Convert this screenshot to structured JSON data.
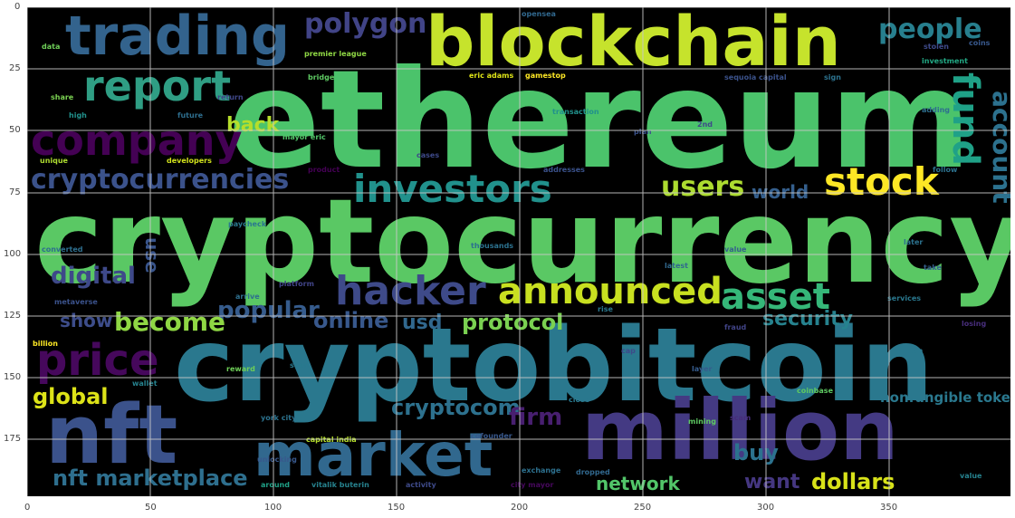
{
  "axes": {
    "x_ticks": [
      "0",
      "50",
      "100",
      "150",
      "200",
      "250",
      "300",
      "350"
    ],
    "y_ticks": [
      "0",
      "25",
      "50",
      "75",
      "100",
      "125",
      "150",
      "175"
    ]
  },
  "wordcloud": {
    "words": [
      {
        "text": "ethereum",
        "color": "#4bc36b"
      },
      {
        "text": "cryptocurrency",
        "color": "#5ac864"
      },
      {
        "text": "cryptobitcoin",
        "color": "#2a788e"
      },
      {
        "text": "blockchain",
        "color": "#c6e32c"
      },
      {
        "text": "trading",
        "color": "#33638d"
      },
      {
        "text": "million",
        "color": "#443a83"
      },
      {
        "text": "nft",
        "color": "#3b528b"
      },
      {
        "text": "market",
        "color": "#31688e"
      },
      {
        "text": "report",
        "color": "#2f9e84"
      },
      {
        "text": "company",
        "color": "#440154"
      },
      {
        "text": "price",
        "color": "#46085c"
      },
      {
        "text": "hacker",
        "color": "#3e4a89"
      },
      {
        "text": "announced",
        "color": "#c8e020"
      },
      {
        "text": "investors",
        "color": "#21918c"
      },
      {
        "text": "stock",
        "color": "#fde725"
      },
      {
        "text": "asset",
        "color": "#35b779"
      },
      {
        "text": "cryptocurrencies",
        "color": "#3b528b"
      },
      {
        "text": "polygon",
        "color": "#414487"
      },
      {
        "text": "people",
        "color": "#277f8e"
      },
      {
        "text": "fund",
        "color": "#1fa187"
      },
      {
        "text": "account",
        "color": "#2c718e"
      },
      {
        "text": "users",
        "color": "#addc30"
      },
      {
        "text": "popular",
        "color": "#365c8d"
      },
      {
        "text": "become",
        "color": "#8fd744"
      },
      {
        "text": "digital",
        "color": "#3e4989"
      },
      {
        "text": "online",
        "color": "#38588c"
      },
      {
        "text": "usd",
        "color": "#31688e"
      },
      {
        "text": "protocol",
        "color": "#7ad151"
      },
      {
        "text": "security",
        "color": "#26828e"
      },
      {
        "text": "show",
        "color": "#3d4d8a"
      },
      {
        "text": "global",
        "color": "#dde318"
      },
      {
        "text": "cryptocom",
        "color": "#2d718e"
      },
      {
        "text": "firm",
        "color": "#481f70"
      },
      {
        "text": "buy",
        "color": "#2c728e"
      },
      {
        "text": "want",
        "color": "#453781"
      },
      {
        "text": "dollars",
        "color": "#d8e219"
      },
      {
        "text": "network",
        "color": "#52c569"
      },
      {
        "text": "nft marketplace",
        "color": "#2e6f8e"
      },
      {
        "text": "back",
        "color": "#b5de2b"
      },
      {
        "text": "world",
        "color": "#355f8d"
      },
      {
        "text": "nonfungible token",
        "color": "#2a788e"
      },
      {
        "text": "use",
        "color": "#39558c"
      }
    ],
    "small_words": [
      {
        "text": "data",
        "color": "#6ece58"
      },
      {
        "text": "premier league",
        "color": "#8fd744"
      },
      {
        "text": "bridge",
        "color": "#5ec962"
      },
      {
        "text": "eric adams",
        "color": "#dde318"
      },
      {
        "text": "gamestop",
        "color": "#fde725"
      },
      {
        "text": "sequoia capital",
        "color": "#3b528b"
      },
      {
        "text": "sign",
        "color": "#2c728e"
      },
      {
        "text": "investment",
        "color": "#22a884"
      },
      {
        "text": "stolen",
        "color": "#3e4a89"
      },
      {
        "text": "coins",
        "color": "#38588c"
      },
      {
        "text": "share",
        "color": "#7ad151"
      },
      {
        "text": "high",
        "color": "#21918c"
      },
      {
        "text": "future",
        "color": "#2e6e8e"
      },
      {
        "text": "return",
        "color": "#3f4788"
      },
      {
        "text": "mayor eric",
        "color": "#52c569"
      },
      {
        "text": "unique",
        "color": "#addc30"
      },
      {
        "text": "developers",
        "color": "#d0e11c"
      },
      {
        "text": "product",
        "color": "#440154"
      },
      {
        "text": "paycheck",
        "color": "#2a788e"
      },
      {
        "text": "converted",
        "color": "#2e6f8e"
      },
      {
        "text": "thousands",
        "color": "#2c718e"
      },
      {
        "text": "value",
        "color": "#355f8d"
      },
      {
        "text": "latest",
        "color": "#31688e"
      },
      {
        "text": "metaverse",
        "color": "#3b528b"
      },
      {
        "text": "platform",
        "color": "#414487"
      },
      {
        "text": "services",
        "color": "#2a788e"
      },
      {
        "text": "losing",
        "color": "#472d7b"
      },
      {
        "text": "billion",
        "color": "#fde725"
      },
      {
        "text": "reward",
        "color": "#6ece58"
      },
      {
        "text": "wallet",
        "color": "#26828e"
      },
      {
        "text": "york city",
        "color": "#2c728e"
      },
      {
        "text": "capital india",
        "color": "#b5de2b"
      },
      {
        "text": "unlocking",
        "color": "#38588c"
      },
      {
        "text": "around",
        "color": "#1fa187"
      },
      {
        "text": "vitalik buterin",
        "color": "#26828e"
      },
      {
        "text": "activity",
        "color": "#3e4a89"
      },
      {
        "text": "city mayor",
        "color": "#46085c"
      },
      {
        "text": "exchange",
        "color": "#2d708e"
      },
      {
        "text": "mining",
        "color": "#5ec962"
      },
      {
        "text": "close",
        "color": "#2a788e"
      },
      {
        "text": "layer",
        "color": "#365c8d"
      },
      {
        "text": "cap",
        "color": "#3e4989"
      },
      {
        "text": "addresses",
        "color": "#3b528b"
      },
      {
        "text": "follow",
        "color": "#2c718e"
      },
      {
        "text": "opensea",
        "color": "#31688e"
      },
      {
        "text": "adding",
        "color": "#2e6f8e"
      },
      {
        "text": "2nd",
        "color": "#3e4a89"
      },
      {
        "text": "seen",
        "color": "#29798e"
      },
      {
        "text": "rise",
        "color": "#2a788e"
      },
      {
        "text": "plan",
        "color": "#3b528b"
      },
      {
        "text": "coinbase",
        "color": "#5ec962"
      },
      {
        "text": "transaction",
        "color": "#21918c"
      },
      {
        "text": "cases",
        "color": "#3e4a89"
      },
      {
        "text": "arrive",
        "color": "#2e6f8e"
      },
      {
        "text": "fraud",
        "color": "#414487"
      },
      {
        "text": "later",
        "color": "#2c728e"
      },
      {
        "text": "take",
        "color": "#355f8d"
      },
      {
        "text": "scam",
        "color": "#472d7b"
      },
      {
        "text": "dropped",
        "color": "#31688e"
      },
      {
        "text": "loan",
        "color": "#2a788e"
      },
      {
        "text": "cofounder",
        "color": "#38588c"
      },
      {
        "text": "value",
        "color": "#26828e"
      }
    ]
  }
}
